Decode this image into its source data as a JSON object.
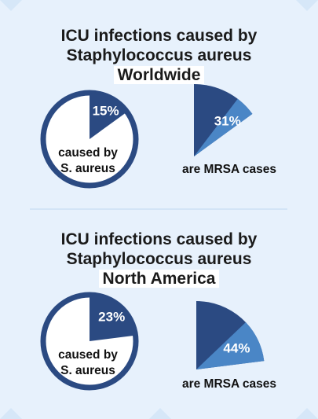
{
  "chart_data": [
    {
      "type": "pie",
      "title_lines": [
        "ICU infections caused by",
        "Staphylococcus aureus"
      ],
      "region": "Worldwide",
      "pie": {
        "value": 15,
        "value_label": "15%",
        "caption_lines": [
          "caused by",
          "S. aureus"
        ]
      },
      "mrsa": {
        "value": 31,
        "value_label": "31%",
        "caption": "are MRSA cases"
      }
    },
    {
      "type": "pie",
      "title_lines": [
        "ICU infections caused by",
        "Staphylococcus aureus"
      ],
      "region": "North America",
      "pie": {
        "value": 23,
        "value_label": "23%",
        "caption_lines": [
          "caused by",
          "S. aureus"
        ]
      },
      "mrsa": {
        "value": 44,
        "value_label": "44%",
        "caption": "are MRSA cases"
      }
    }
  ],
  "colors": {
    "background": "#e7f1fc",
    "dark_blue": "#2b4a82",
    "light_blue": "#4a86c6",
    "white": "#ffffff"
  }
}
